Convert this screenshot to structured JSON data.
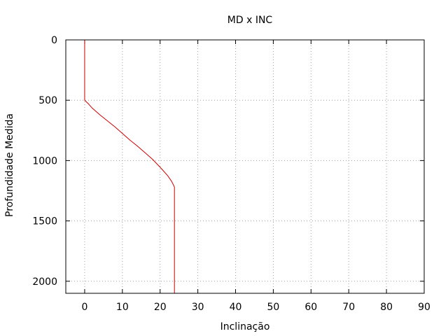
{
  "chart_data": {
    "type": "line",
    "title": "MD x INC",
    "xlabel": "Inclinação",
    "ylabel": "Profundidade Medida",
    "xlim": [
      -5,
      90
    ],
    "ylim": [
      0,
      2100
    ],
    "y_inverted": true,
    "x_ticks": [
      0,
      10,
      20,
      30,
      40,
      50,
      60,
      70,
      80,
      90
    ],
    "y_ticks": [
      0,
      500,
      1000,
      1500,
      2000
    ],
    "grid": true,
    "series": [
      {
        "color": "#cc0000",
        "x": [
          0,
          0,
          0.5,
          1,
          2,
          4,
          6,
          8,
          10,
          12,
          14,
          16,
          18,
          20,
          22,
          23,
          23.5,
          23.8,
          23.8
        ],
        "y": [
          0,
          500,
          515,
          530,
          565,
          620,
          670,
          720,
          775,
          830,
          880,
          935,
          990,
          1055,
          1125,
          1170,
          1200,
          1220,
          2100
        ]
      }
    ]
  }
}
